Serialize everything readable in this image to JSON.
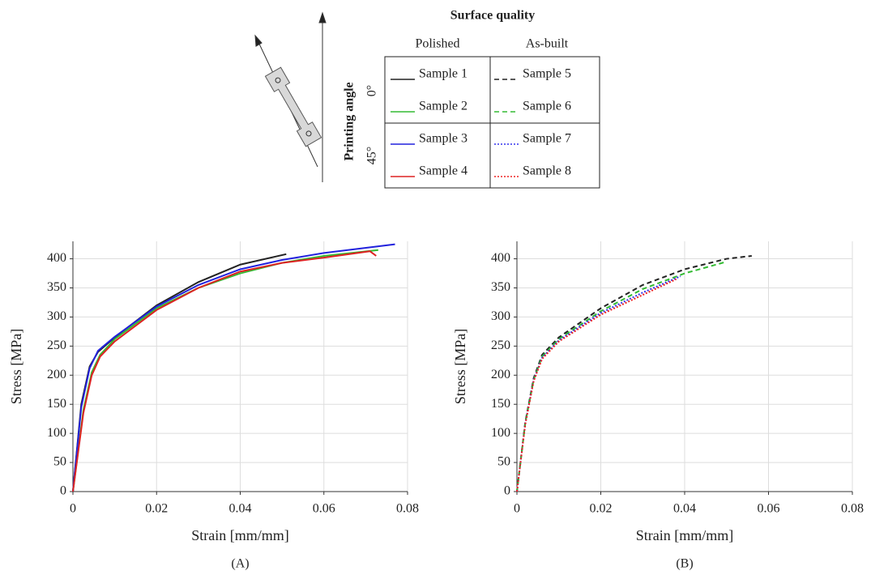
{
  "legend": {
    "title": "Surface quality",
    "columns": [
      "Polished",
      "As-built"
    ],
    "row_label": "Printing angle",
    "rows": [
      "0°",
      "45°"
    ]
  },
  "chart_data": [
    {
      "type": "line",
      "caption": "(A)",
      "xlabel": "Strain [mm/mm]",
      "ylabel": "Stress [MPa]",
      "xlim": [
        0,
        0.08
      ],
      "xticks": [
        0,
        0.02,
        0.04,
        0.06,
        0.08
      ],
      "ylim": [
        0,
        430
      ],
      "yticks": [
        0,
        50,
        100,
        150,
        200,
        250,
        300,
        350,
        400
      ],
      "grid": true,
      "series": [
        {
          "name": "Sample 1",
          "color": "#222222",
          "linestyle": "solid",
          "x": [
            0,
            0.002,
            0.004,
            0.006,
            0.01,
            0.02,
            0.03,
            0.04,
            0.051
          ],
          "values": [
            0,
            150,
            215,
            240,
            265,
            320,
            360,
            390,
            408
          ]
        },
        {
          "name": "Sample 2",
          "color": "#33bb33",
          "linestyle": "solid",
          "x": [
            0,
            0.0025,
            0.0045,
            0.0065,
            0.01,
            0.02,
            0.03,
            0.04,
            0.05,
            0.06,
            0.073
          ],
          "values": [
            0,
            140,
            205,
            235,
            262,
            315,
            350,
            375,
            393,
            405,
            415
          ]
        },
        {
          "name": "Sample 3",
          "color": "#2222dd",
          "linestyle": "solid",
          "x": [
            0,
            0.002,
            0.004,
            0.006,
            0.01,
            0.02,
            0.03,
            0.04,
            0.05,
            0.06,
            0.077
          ],
          "values": [
            0,
            145,
            212,
            242,
            266,
            318,
            355,
            382,
            398,
            410,
            425
          ]
        },
        {
          "name": "Sample 4",
          "color": "#dd2222",
          "linestyle": "solid",
          "x": [
            0,
            0.0025,
            0.0045,
            0.0065,
            0.01,
            0.02,
            0.03,
            0.04,
            0.05,
            0.06,
            0.071,
            0.0725
          ],
          "values": [
            0,
            135,
            200,
            232,
            258,
            312,
            350,
            378,
            393,
            402,
            413,
            405
          ]
        }
      ]
    },
    {
      "type": "line",
      "caption": "(B)",
      "xlabel": "Strain [mm/mm]",
      "ylabel": "Stress [MPa]",
      "xlim": [
        0,
        0.08
      ],
      "xticks": [
        0,
        0.02,
        0.04,
        0.06,
        0.08
      ],
      "ylim": [
        0,
        430
      ],
      "yticks": [
        0,
        50,
        100,
        150,
        200,
        250,
        300,
        350,
        400
      ],
      "grid": true,
      "series": [
        {
          "name": "Sample 5",
          "color": "#222222",
          "linestyle": "dashed",
          "x": [
            0,
            0.002,
            0.004,
            0.006,
            0.01,
            0.02,
            0.03,
            0.04,
            0.05,
            0.056
          ],
          "values": [
            0,
            120,
            195,
            235,
            265,
            315,
            355,
            382,
            400,
            405
          ]
        },
        {
          "name": "Sample 6",
          "color": "#33bb33",
          "linestyle": "dashed",
          "x": [
            0,
            0.002,
            0.004,
            0.006,
            0.01,
            0.02,
            0.03,
            0.04,
            0.05
          ],
          "values": [
            0,
            118,
            192,
            232,
            262,
            310,
            348,
            375,
            395
          ]
        },
        {
          "name": "Sample 7",
          "color": "#3333ee",
          "linestyle": "dotted",
          "x": [
            0,
            0.002,
            0.004,
            0.006,
            0.01,
            0.02,
            0.03,
            0.039
          ],
          "values": [
            0,
            118,
            192,
            230,
            260,
            307,
            342,
            370
          ]
        },
        {
          "name": "Sample 8",
          "color": "#ee2222",
          "linestyle": "dotted",
          "x": [
            0,
            0.002,
            0.004,
            0.006,
            0.01,
            0.02,
            0.03,
            0.038
          ],
          "values": [
            0,
            116,
            190,
            228,
            258,
            304,
            338,
            365
          ]
        }
      ]
    }
  ]
}
